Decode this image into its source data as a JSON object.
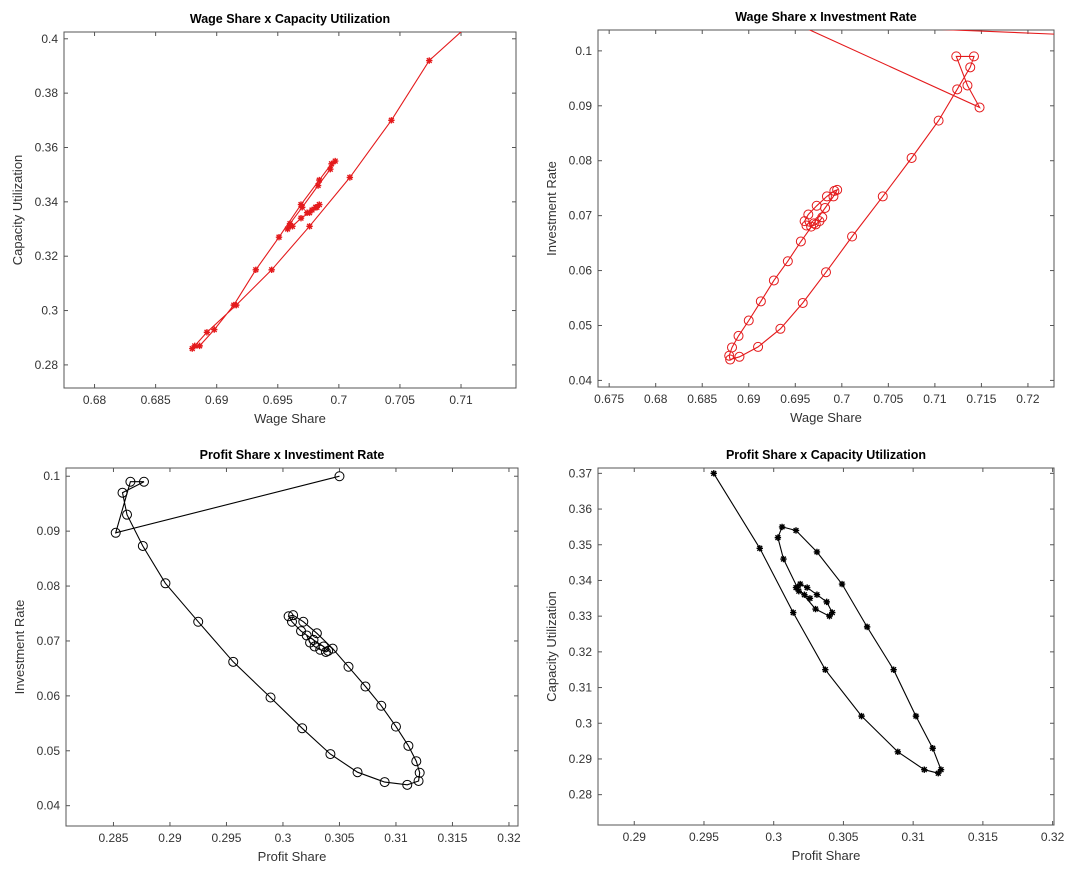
{
  "chart_data": [
    {
      "type": "line",
      "title": "Wage Share x Capacity Utilization",
      "xlabel": "Wage Share",
      "ylabel": "Capacity Utilization",
      "xlim": [
        0.6775,
        0.7145
      ],
      "ylim": [
        0.2715,
        0.4025
      ],
      "xticks": [
        "0.68",
        "0.685",
        "0.69",
        "0.695",
        "0.7",
        "0.705",
        "0.71"
      ],
      "xtick_values": [
        0.68,
        0.685,
        0.69,
        0.695,
        0.7,
        0.705,
        0.71
      ],
      "yticks": [
        "0.28",
        "0.3",
        "0.32",
        "0.34",
        "0.36",
        "0.38",
        "0.4"
      ],
      "ytick_values": [
        0.28,
        0.3,
        0.32,
        0.34,
        0.36,
        0.38,
        0.4
      ],
      "color": "#e41a1c",
      "marker": "star",
      "series": [
        {
          "x": [
            0.7106,
            0.7074,
            0.7043,
            0.7009,
            0.6976,
            0.6945,
            0.6916,
            0.6892,
            0.6882,
            0.688,
            0.6886,
            0.6898,
            0.6914,
            0.6932,
            0.6951,
            0.6969,
            0.6984,
            0.6994,
            0.6997,
            0.6993,
            0.6983,
            0.697,
            0.696,
            0.6958,
            0.6962,
            0.6969,
            0.6976,
            0.6981,
            0.6984,
            0.6982,
            0.6978,
            0.6974
          ],
          "y": [
            0.405,
            0.392,
            0.37,
            0.349,
            0.331,
            0.315,
            0.302,
            0.292,
            0.287,
            0.286,
            0.287,
            0.293,
            0.302,
            0.315,
            0.327,
            0.339,
            0.348,
            0.354,
            0.355,
            0.352,
            0.346,
            0.338,
            0.332,
            0.33,
            0.331,
            0.334,
            0.336,
            0.338,
            0.339,
            0.338,
            0.337,
            0.336
          ]
        }
      ]
    },
    {
      "type": "line",
      "title": "Wage Share x Investment Rate",
      "xlabel": "Wage Share",
      "ylabel": "Investment Rate",
      "xlim": [
        0.6738,
        0.7228
      ],
      "ylim": [
        0.0388,
        0.1038
      ],
      "xticks": [
        "0.675",
        "0.68",
        "0.685",
        "0.69",
        "0.695",
        "0.7",
        "0.705",
        "0.71",
        "0.715",
        "0.72"
      ],
      "xtick_values": [
        0.675,
        0.68,
        0.685,
        0.69,
        0.695,
        0.7,
        0.705,
        0.71,
        0.715,
        0.72
      ],
      "yticks": [
        "0.04",
        "0.05",
        "0.06",
        "0.07",
        "0.08",
        "0.09",
        "0.1"
      ],
      "ytick_values": [
        0.04,
        0.05,
        0.06,
        0.07,
        0.08,
        0.09,
        0.1
      ],
      "color": "#e41a1c",
      "marker": "circle",
      "series": [
        {
          "x": [
            0.7235,
            0.695,
            0.7148,
            0.7135,
            0.7123,
            0.7142,
            0.7138,
            0.7124,
            0.7104,
            0.7075,
            0.7044,
            0.7011,
            0.6983,
            0.6958,
            0.6934,
            0.691,
            0.689,
            0.688,
            0.6879,
            0.6882,
            0.6889,
            0.69,
            0.6913,
            0.6927,
            0.6942,
            0.6956,
            0.697,
            0.6982,
            0.6991,
            0.6995,
            0.6992,
            0.6984,
            0.6973,
            0.6964,
            0.696,
            0.6962,
            0.6967,
            0.6972,
            0.6976,
            0.6979
          ],
          "y": [
            0.103,
            0.105,
            0.0897,
            0.0937,
            0.099,
            0.099,
            0.097,
            0.093,
            0.0873,
            0.0805,
            0.0735,
            0.0662,
            0.0597,
            0.0541,
            0.0494,
            0.0461,
            0.0443,
            0.0438,
            0.0445,
            0.046,
            0.0481,
            0.0509,
            0.0544,
            0.0582,
            0.0617,
            0.0653,
            0.0686,
            0.0714,
            0.0735,
            0.0747,
            0.0745,
            0.0735,
            0.0718,
            0.0702,
            0.069,
            0.0682,
            0.068,
            0.0684,
            0.069,
            0.0697
          ]
        }
      ]
    },
    {
      "type": "line",
      "title": "Profit Share x Investiment Rate",
      "xlabel": "Profit Share",
      "ylabel": "Investment Rate",
      "xlim": [
        0.2808,
        0.3208
      ],
      "ylim": [
        0.0363,
        0.1015
      ],
      "xticks": [
        "0.285",
        "0.29",
        "0.295",
        "0.3",
        "0.305",
        "0.31",
        "0.315",
        "0.32"
      ],
      "xtick_values": [
        0.285,
        0.29,
        0.295,
        0.3,
        0.305,
        0.31,
        0.315,
        0.32
      ],
      "yticks": [
        "0.04",
        "0.05",
        "0.06",
        "0.07",
        "0.08",
        "0.09",
        "0.1"
      ],
      "ytick_values": [
        0.04,
        0.05,
        0.06,
        0.07,
        0.08,
        0.09,
        0.1
      ],
      "color": "#000000",
      "marker": "circle",
      "series": [
        {
          "x": [
            0.305,
            0.2852,
            0.2865,
            0.2877,
            0.2858,
            0.2862,
            0.2876,
            0.2896,
            0.2925,
            0.2956,
            0.2989,
            0.3017,
            0.3042,
            0.3066,
            0.309,
            0.311,
            0.312,
            0.3121,
            0.3118,
            0.3111,
            0.31,
            0.3087,
            0.3073,
            0.3058,
            0.3044,
            0.303,
            0.3018,
            0.3009,
            0.3005,
            0.3008,
            0.3016,
            0.3027,
            0.3036,
            0.304,
            0.3038,
            0.3033,
            0.3028,
            0.3024,
            0.3021
          ],
          "y": [
            0.1,
            0.0897,
            0.099,
            0.099,
            0.097,
            0.093,
            0.0873,
            0.0805,
            0.0735,
            0.0662,
            0.0597,
            0.0541,
            0.0494,
            0.0461,
            0.0443,
            0.0438,
            0.0445,
            0.046,
            0.0481,
            0.0509,
            0.0544,
            0.0582,
            0.0617,
            0.0653,
            0.0686,
            0.0714,
            0.0735,
            0.0747,
            0.0745,
            0.0735,
            0.0718,
            0.0702,
            0.069,
            0.0682,
            0.068,
            0.0684,
            0.069,
            0.0697,
            0.071
          ]
        }
      ]
    },
    {
      "type": "line",
      "title": "Profit Share x Capacity Utilization",
      "xlabel": "Profit Share",
      "ylabel": "Capacity Utilization",
      "xlim": [
        0.2874,
        0.3201
      ],
      "ylim": [
        0.2715,
        0.3715
      ],
      "xticks": [
        "0.29",
        "0.295",
        "0.3",
        "0.305",
        "0.31",
        "0.315",
        "0.32"
      ],
      "xtick_values": [
        0.29,
        0.295,
        0.3,
        0.305,
        0.31,
        0.315,
        0.32
      ],
      "yticks": [
        "0.28",
        "0.29",
        "0.3",
        "0.31",
        "0.32",
        "0.33",
        "0.34",
        "0.35",
        "0.36",
        "0.37"
      ],
      "ytick_values": [
        0.28,
        0.29,
        0.3,
        0.31,
        0.32,
        0.33,
        0.34,
        0.35,
        0.36,
        0.37
      ],
      "color": "#000000",
      "marker": "star",
      "series": [
        {
          "x": [
            0.2957,
            0.299,
            0.3014,
            0.3037,
            0.3063,
            0.3089,
            0.3108,
            0.3118,
            0.312,
            0.3114,
            0.3102,
            0.3086,
            0.3067,
            0.3049,
            0.3031,
            0.3016,
            0.3006,
            0.3003,
            0.3007,
            0.3017,
            0.303,
            0.304,
            0.3042,
            0.3038,
            0.3031,
            0.3024,
            0.3019,
            0.3016,
            0.3018,
            0.3022,
            0.3026
          ],
          "y": [
            0.37,
            0.349,
            0.331,
            0.315,
            0.302,
            0.292,
            0.287,
            0.286,
            0.287,
            0.293,
            0.302,
            0.315,
            0.327,
            0.339,
            0.348,
            0.354,
            0.355,
            0.352,
            0.346,
            0.338,
            0.332,
            0.33,
            0.331,
            0.334,
            0.336,
            0.338,
            0.339,
            0.338,
            0.337,
            0.336,
            0.335
          ]
        }
      ]
    }
  ]
}
